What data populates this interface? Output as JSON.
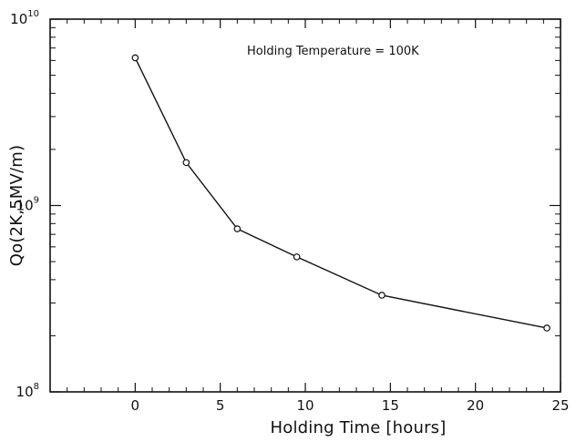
{
  "chart_data": {
    "type": "line",
    "title": "",
    "xlabel": "Holding Time [hours]",
    "ylabel": "Qo(2K,5MV/m)",
    "annotation": "Holding Temperature = 100K",
    "x": [
      0,
      3,
      6,
      9.5,
      14.5,
      24.2
    ],
    "series": [
      {
        "name": "",
        "values": [
          6200000000,
          1700000000,
          750000000,
          530000000,
          330000000,
          220000000
        ]
      }
    ],
    "xlim": [
      -5,
      25
    ],
    "ylim": [
      100000000,
      10000000000
    ],
    "y_scale": "log",
    "x_ticks": [
      0,
      5,
      10,
      15,
      20,
      25
    ],
    "x_tick_labels": [
      "0",
      "5",
      "10",
      "15",
      "20",
      "25"
    ],
    "y_ticks": [
      100000000,
      1000000000,
      10000000000
    ],
    "y_tick_labels": [
      {
        "base": "10",
        "exp": "8"
      },
      {
        "base": "10",
        "exp": "9"
      },
      {
        "base": "10",
        "exp": "10"
      }
    ],
    "grid": false,
    "legend": "none",
    "marker": "open circle",
    "colors": {
      "axis": "#111111",
      "series": "#111111",
      "background": "#ffffff"
    }
  }
}
